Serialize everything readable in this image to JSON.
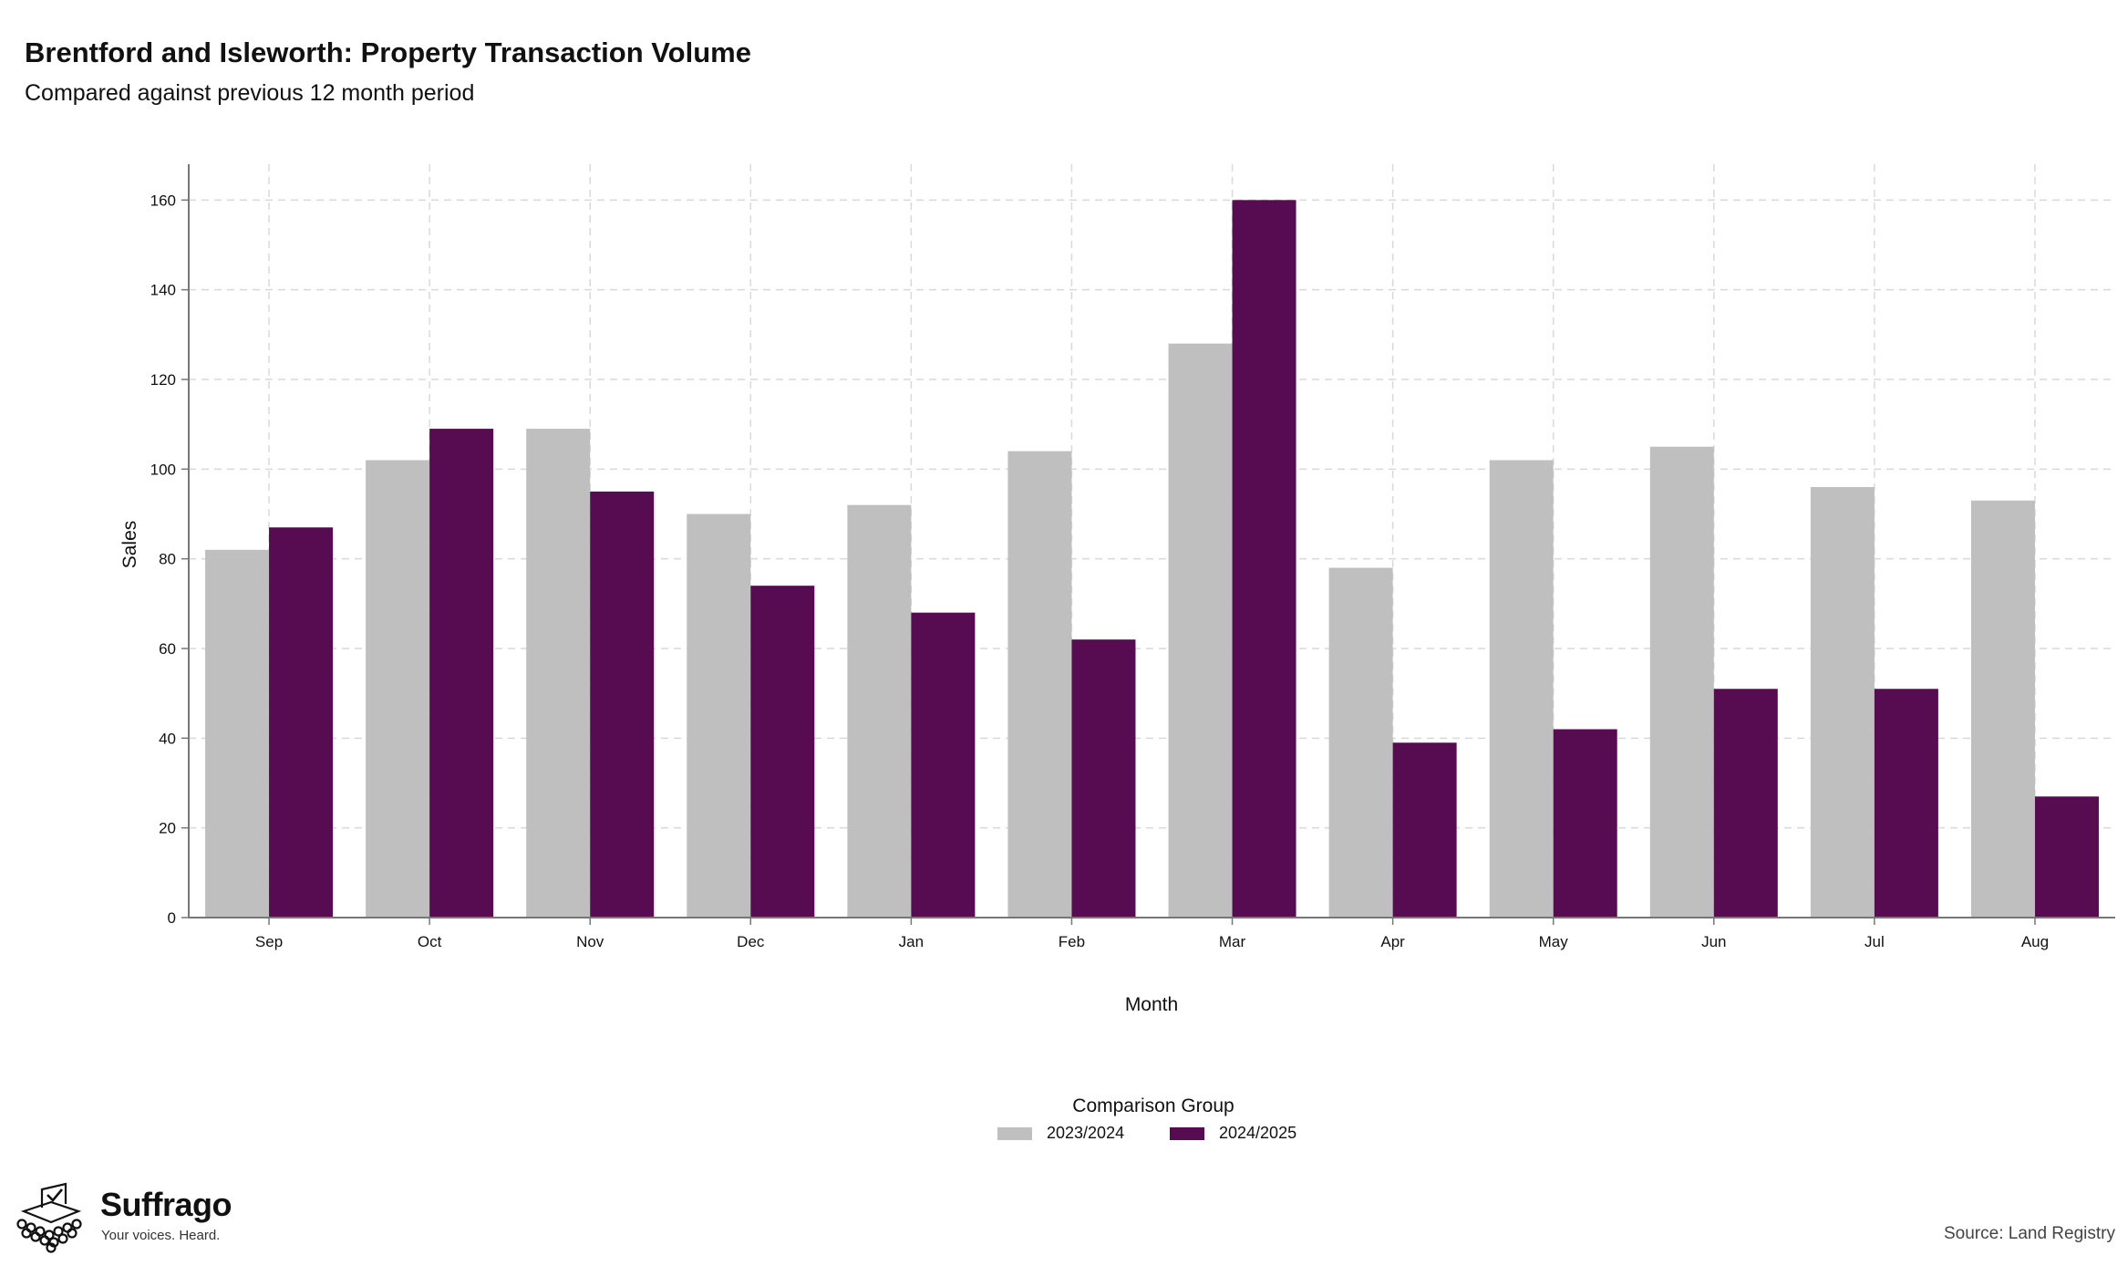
{
  "header": {
    "title": "Brentford and Isleworth: Property Transaction Volume",
    "subtitle": "Compared against previous 12 month period"
  },
  "chart_data": {
    "type": "bar",
    "xlabel": "Month",
    "ylabel": "Sales",
    "categories": [
      "Sep",
      "Oct",
      "Nov",
      "Dec",
      "Jan",
      "Feb",
      "Mar",
      "Apr",
      "May",
      "Jun",
      "Jul",
      "Aug"
    ],
    "series": [
      {
        "name": "2023/2024",
        "color": "#bfbfbf",
        "values": [
          82,
          102,
          109,
          90,
          92,
          104,
          128,
          78,
          102,
          105,
          96,
          93
        ]
      },
      {
        "name": "2024/2025",
        "color": "#570b50",
        "values": [
          87,
          109,
          95,
          74,
          68,
          62,
          160,
          39,
          42,
          51,
          51,
          27
        ]
      }
    ],
    "ylim": [
      0,
      168
    ],
    "yticks": [
      0,
      20,
      40,
      60,
      80,
      100,
      120,
      140,
      160
    ],
    "grid": true,
    "legend_title": "Comparison Group",
    "legend_position": "bottom"
  },
  "footer": {
    "brand_name": "Suffrago",
    "brand_tagline": "Your voices. Heard.",
    "source": "Source: Land Registry"
  },
  "icons": {
    "logo": "ballot-box-icon"
  }
}
